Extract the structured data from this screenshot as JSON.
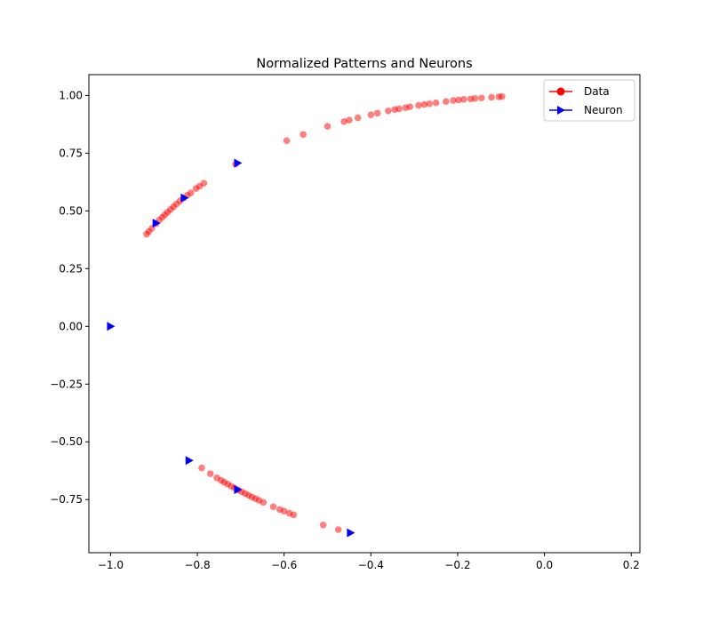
{
  "chart_data": {
    "type": "scatter",
    "title": "Normalized Patterns and Neurons",
    "xlabel": "",
    "ylabel": "",
    "xlim": [
      -1.05,
      0.22
    ],
    "ylim": [
      -0.98,
      1.09
    ],
    "xticks": [
      -1.0,
      -0.8,
      -0.6,
      -0.4,
      -0.2,
      0.0,
      0.2
    ],
    "xtick_labels": [
      "−1.0",
      "−0.8",
      "−0.6",
      "−0.4",
      "−0.2",
      "0.0",
      "0.2"
    ],
    "yticks": [
      1.0,
      0.75,
      0.5,
      0.25,
      0.0,
      -0.25,
      -0.5,
      -0.75
    ],
    "ytick_labels": [
      "1.00",
      "0.75",
      "0.50",
      "0.25",
      "0.00",
      "−0.25",
      "−0.50",
      "−0.75"
    ],
    "grid": false,
    "legend_position": "top-right",
    "series": [
      {
        "name": "Data",
        "color": "#ff0000",
        "marker": "circle",
        "points": [
          [
            -0.917,
            0.399
          ],
          [
            -0.912,
            0.41
          ],
          [
            -0.905,
            0.424
          ],
          [
            -0.895,
            0.445
          ],
          [
            -0.888,
            0.46
          ],
          [
            -0.881,
            0.472
          ],
          [
            -0.875,
            0.483
          ],
          [
            -0.869,
            0.494
          ],
          [
            -0.862,
            0.506
          ],
          [
            -0.855,
            0.518
          ],
          [
            -0.848,
            0.53
          ],
          [
            -0.84,
            0.543
          ],
          [
            -0.832,
            0.555
          ],
          [
            -0.823,
            0.568
          ],
          [
            -0.815,
            0.578
          ],
          [
            -0.803,
            0.597
          ],
          [
            -0.795,
            0.607
          ],
          [
            -0.785,
            0.62
          ],
          [
            -0.712,
            0.702
          ],
          [
            -0.594,
            0.804
          ],
          [
            -0.556,
            0.831
          ],
          [
            -0.5,
            0.866
          ],
          [
            -0.462,
            0.887
          ],
          [
            -0.45,
            0.893
          ],
          [
            -0.43,
            0.903
          ],
          [
            -0.4,
            0.916
          ],
          [
            -0.385,
            0.923
          ],
          [
            -0.36,
            0.933
          ],
          [
            -0.345,
            0.939
          ],
          [
            -0.335,
            0.942
          ],
          [
            -0.32,
            0.947
          ],
          [
            -0.31,
            0.951
          ],
          [
            -0.29,
            0.957
          ],
          [
            -0.277,
            0.961
          ],
          [
            -0.265,
            0.964
          ],
          [
            -0.25,
            0.968
          ],
          [
            -0.227,
            0.974
          ],
          [
            -0.21,
            0.978
          ],
          [
            -0.198,
            0.98
          ],
          [
            -0.186,
            0.983
          ],
          [
            -0.17,
            0.985
          ],
          [
            -0.16,
            0.987
          ],
          [
            -0.145,
            0.989
          ],
          [
            -0.122,
            0.992
          ],
          [
            -0.105,
            0.994
          ],
          [
            -0.098,
            0.995
          ],
          [
            -0.79,
            -0.613
          ],
          [
            -0.77,
            -0.638
          ],
          [
            -0.755,
            -0.656
          ],
          [
            -0.745,
            -0.667
          ],
          [
            -0.738,
            -0.675
          ],
          [
            -0.73,
            -0.683
          ],
          [
            -0.722,
            -0.692
          ],
          [
            -0.714,
            -0.7
          ],
          [
            -0.706,
            -0.708
          ],
          [
            -0.698,
            -0.716
          ],
          [
            -0.69,
            -0.724
          ],
          [
            -0.682,
            -0.731
          ],
          [
            -0.674,
            -0.739
          ],
          [
            -0.666,
            -0.746
          ],
          [
            -0.658,
            -0.753
          ],
          [
            -0.648,
            -0.762
          ],
          [
            -0.625,
            -0.781
          ],
          [
            -0.61,
            -0.793
          ],
          [
            -0.6,
            -0.8
          ],
          [
            -0.588,
            -0.809
          ],
          [
            -0.578,
            -0.816
          ],
          [
            -0.51,
            -0.86
          ],
          [
            -0.475,
            -0.88
          ]
        ]
      },
      {
        "name": "Neuron",
        "color": "#0000ff",
        "marker": "triangle-right",
        "points": [
          [
            -0.707,
            0.707
          ],
          [
            -0.83,
            0.556
          ],
          [
            -0.895,
            0.447
          ],
          [
            -1.0,
            0.0
          ],
          [
            -0.819,
            -0.581
          ],
          [
            -0.707,
            -0.707
          ],
          [
            -0.447,
            -0.894
          ]
        ]
      }
    ]
  }
}
